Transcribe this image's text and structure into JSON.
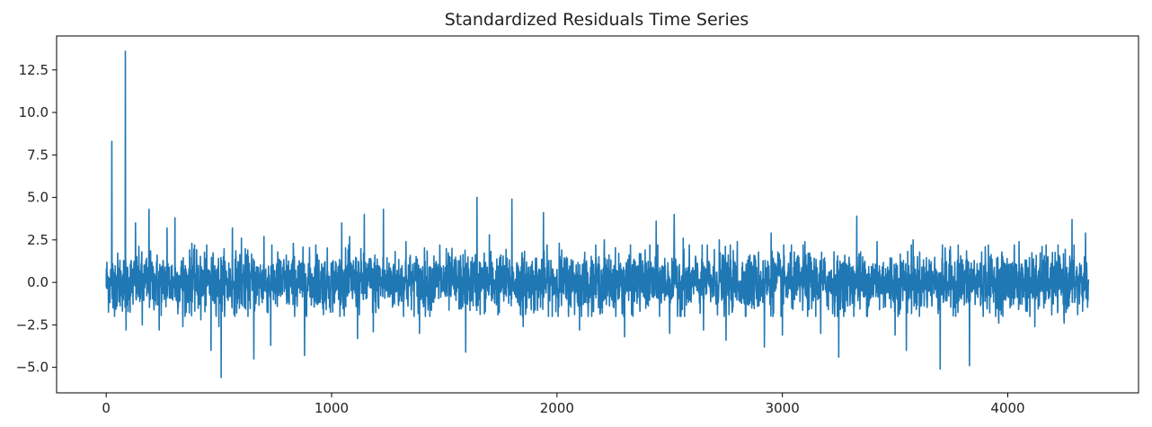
{
  "chart_data": {
    "type": "line",
    "title": "Standardized Residuals Time Series",
    "xlabel": "",
    "ylabel": "",
    "xlim": [
      -220,
      4580
    ],
    "ylim": [
      -6.5,
      14.5
    ],
    "grid": false,
    "legend": "none",
    "x_ticks": [
      0,
      1000,
      2000,
      3000,
      4000
    ],
    "x_tick_labels": [
      "0",
      "1000",
      "2000",
      "3000",
      "4000"
    ],
    "y_ticks": [
      -5.0,
      -2.5,
      0.0,
      2.5,
      5.0,
      7.5,
      10.0,
      12.5
    ],
    "y_tick_labels": [
      "−5.0",
      "−2.5",
      "0.0",
      "2.5",
      "5.0",
      "7.5",
      "10.0",
      "12.5"
    ],
    "series": [
      {
        "color": "#1f77b4",
        "n_points": 4360,
        "range": [
          0,
          4359
        ],
        "noise_sd": 0.85,
        "spikes": [
          [
            25,
            8.3
          ],
          [
            30,
            -1.5
          ],
          [
            85,
            13.6
          ],
          [
            88,
            -2.8
          ],
          [
            130,
            3.5
          ],
          [
            160,
            -2.5
          ],
          [
            190,
            4.3
          ],
          [
            235,
            -2.8
          ],
          [
            270,
            3.2
          ],
          [
            305,
            3.8
          ],
          [
            340,
            -2.6
          ],
          [
            380,
            2.3
          ],
          [
            420,
            -2.2
          ],
          [
            465,
            -4.0
          ],
          [
            500,
            -2.6
          ],
          [
            510,
            -5.6
          ],
          [
            560,
            3.2
          ],
          [
            600,
            2.6
          ],
          [
            655,
            -4.5
          ],
          [
            700,
            2.7
          ],
          [
            730,
            -3.7
          ],
          [
            830,
            2.3
          ],
          [
            880,
            -4.3
          ],
          [
            930,
            2.2
          ],
          [
            1045,
            3.5
          ],
          [
            1080,
            2.7
          ],
          [
            1115,
            -3.3
          ],
          [
            1145,
            4.0
          ],
          [
            1185,
            -2.9
          ],
          [
            1230,
            4.3
          ],
          [
            1330,
            2.4
          ],
          [
            1390,
            -3.0
          ],
          [
            1480,
            2.2
          ],
          [
            1595,
            -4.1
          ],
          [
            1645,
            5.0
          ],
          [
            1700,
            2.8
          ],
          [
            1800,
            4.9
          ],
          [
            1850,
            -2.6
          ],
          [
            1940,
            4.1
          ],
          [
            2010,
            2.3
          ],
          [
            2100,
            -2.8
          ],
          [
            2210,
            2.5
          ],
          [
            2300,
            -3.2
          ],
          [
            2440,
            3.6
          ],
          [
            2500,
            -3.0
          ],
          [
            2520,
            4.0
          ],
          [
            2560,
            2.6
          ],
          [
            2650,
            -2.8
          ],
          [
            2720,
            2.5
          ],
          [
            2750,
            -3.4
          ],
          [
            2800,
            2.4
          ],
          [
            2920,
            -3.8
          ],
          [
            2950,
            2.9
          ],
          [
            3000,
            -3.1
          ],
          [
            3100,
            2.4
          ],
          [
            3170,
            -3.0
          ],
          [
            3250,
            -4.4
          ],
          [
            3330,
            3.9
          ],
          [
            3420,
            2.4
          ],
          [
            3500,
            -3.1
          ],
          [
            3550,
            -4.0
          ],
          [
            3580,
            2.5
          ],
          [
            3700,
            -5.1
          ],
          [
            3780,
            2.2
          ],
          [
            3830,
            -4.9
          ],
          [
            3900,
            2.1
          ],
          [
            3960,
            -2.4
          ],
          [
            4050,
            2.4
          ],
          [
            4120,
            -2.6
          ],
          [
            4170,
            2.2
          ],
          [
            4250,
            -2.4
          ],
          [
            4285,
            3.7
          ],
          [
            4310,
            -1.9
          ],
          [
            4345,
            2.9
          ]
        ]
      }
    ]
  }
}
